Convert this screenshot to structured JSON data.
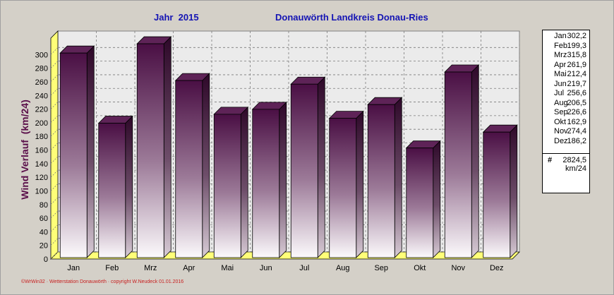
{
  "header": {
    "year_title": "Jahr  2015",
    "station_title": "Donauwörth Landkreis Donau-Ries"
  },
  "footer": "©WrWin32 · Wetterstation Donauwörth · copyright W.Neudeck 01.01.2016",
  "colors": {
    "background": "#d4d0c8",
    "plot_back": "#ebebeb",
    "bar_top_dark": "#4a0f44",
    "bar_bottom_light": "#fcfafc",
    "floor": "#ffff78",
    "title": "#1414b4",
    "ylabel": "#5a0f4a",
    "footer": "#c81e1e"
  },
  "legend": {
    "items": [
      {
        "month": "Jan",
        "value": "302,2"
      },
      {
        "month": "Feb",
        "value": "199,3"
      },
      {
        "month": "Mrz",
        "value": "315,8"
      },
      {
        "month": "Apr",
        "value": "261,9"
      },
      {
        "month": "Mai",
        "value": "212,4"
      },
      {
        "month": "Jun",
        "value": "219,7"
      },
      {
        "month": "Jul",
        "value": "256,6"
      },
      {
        "month": "Aug",
        "value": "206,5"
      },
      {
        "month": "Sep",
        "value": "226,6"
      },
      {
        "month": "Okt",
        "value": "162,9"
      },
      {
        "month": "Nov",
        "value": "274,4"
      },
      {
        "month": "Dez",
        "value": "186,2"
      }
    ],
    "total_symbol": "#",
    "total_value": "2824,5",
    "total_unit": "km/24"
  },
  "chart_data": {
    "type": "bar",
    "title": "Donauwörth Landkreis Donau-Ries",
    "subtitle": "Jahr  2015",
    "xlabel": "",
    "ylabel": "Wind Verlauf  (km/24)",
    "categories": [
      "Jan",
      "Feb",
      "Mrz",
      "Apr",
      "Mai",
      "Jun",
      "Jul",
      "Aug",
      "Sep",
      "Okt",
      "Nov",
      "Dez"
    ],
    "series": [
      {
        "values": [
          302.2,
          199.3,
          315.8,
          261.9,
          212.4,
          219.7,
          256.6,
          206.5,
          226.6,
          162.9,
          274.4,
          186.2
        ]
      }
    ],
    "ylim": [
      0,
      320
    ],
    "yticks": [
      0,
      20,
      40,
      60,
      80,
      100,
      120,
      140,
      160,
      180,
      200,
      220,
      240,
      260,
      280,
      300
    ],
    "grid": true,
    "legend_position": "right",
    "style": "3d-bar"
  }
}
